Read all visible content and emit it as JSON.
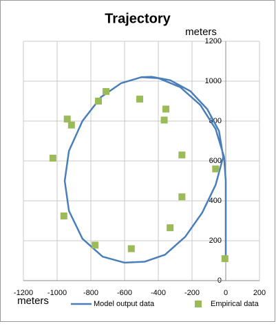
{
  "chart_data": {
    "type": "scatter",
    "title": "Trajectory",
    "x_label": "meters",
    "y_label": "meters",
    "xlim": [
      -1200,
      200
    ],
    "xticks": [
      -1200,
      -1000,
      -800,
      -600,
      -400,
      -200,
      0,
      200
    ],
    "ylim": [
      0,
      1200
    ],
    "yticks": [
      0,
      200,
      400,
      600,
      800,
      1000,
      1200
    ],
    "grid": true,
    "legend": "bottom",
    "series": [
      {
        "name": "Model output data",
        "type": "line",
        "color": "#4a7ebb",
        "x": [
          0,
          0,
          0,
          -10,
          -60,
          -150,
          -270,
          -400,
          -500,
          -620,
          -740,
          -850,
          -930,
          -955,
          -930,
          -850,
          -730,
          -600,
          -480,
          -360,
          -240,
          -140,
          -60,
          -15,
          -40,
          -110,
          -210,
          -330,
          -440,
          -500
        ],
        "values": [
          100,
          300,
          500,
          620,
          760,
          880,
          970,
          1015,
          1020,
          990,
          920,
          800,
          650,
          500,
          350,
          210,
          120,
          90,
          95,
          130,
          220,
          340,
          480,
          620,
          750,
          860,
          950,
          1005,
          1022,
          1020
        ]
      },
      {
        "name": "Empirical data",
        "type": "scatter",
        "color": "#9bbb59",
        "x": [
          -5,
          -60,
          -260,
          -260,
          -330,
          -355,
          -365,
          -510,
          -560,
          -710,
          -755,
          -775,
          -940,
          -915,
          -960,
          -1025
        ],
        "values": [
          110,
          560,
          630,
          420,
          265,
          860,
          805,
          910,
          160,
          948,
          900,
          178,
          810,
          780,
          324,
          614
        ]
      }
    ]
  }
}
